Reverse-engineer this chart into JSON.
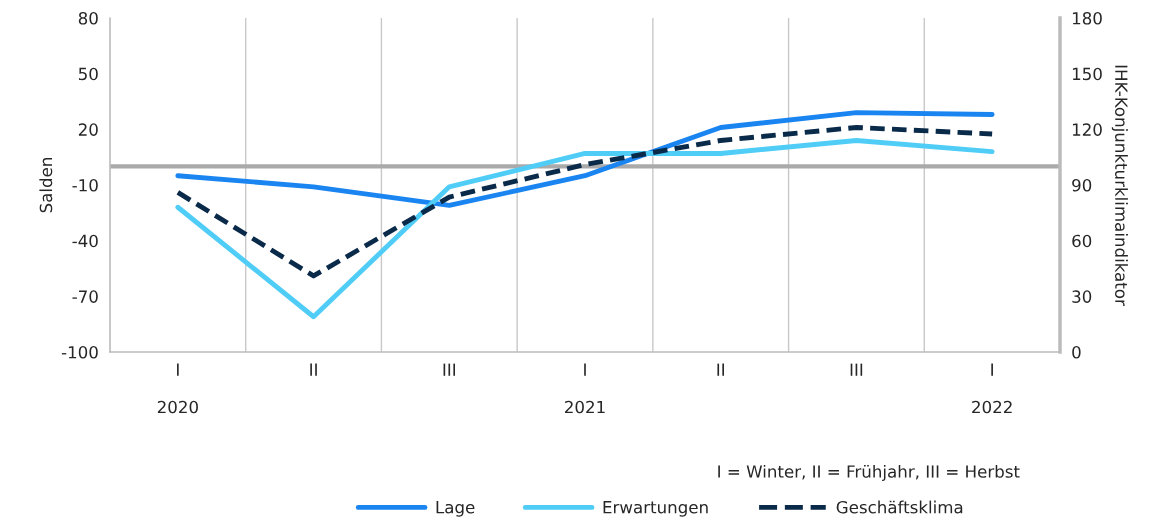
{
  "chart_data": {
    "type": "line",
    "categories": [
      "I\n\n2020",
      "II",
      "III",
      "I\n\n2021",
      "II",
      "III",
      "I\n\n2022"
    ],
    "series": [
      {
        "name": "Lage",
        "color": "#1a85f0",
        "values": [
          -5,
          -11,
          -21,
          -5,
          21,
          29,
          28
        ]
      },
      {
        "name": "Erwartungen",
        "color": "#4fcdf7",
        "values": [
          -22,
          -81,
          -11,
          7,
          7,
          14,
          8
        ]
      },
      {
        "name": "Geschäftsklima",
        "color": "#0a2a4a",
        "values": [
          86,
          41,
          83.5,
          101,
          114,
          121,
          117.5
        ],
        "axis": "y2",
        "line_style": "dashed"
      }
    ],
    "ylabel": "Salden",
    "y2label": "IHK-Konjunkturklimaindikator",
    "ylim": [
      -100,
      80
    ],
    "yticks": [
      -100,
      -70,
      -40,
      -10,
      20,
      50,
      80
    ],
    "y2lim": [
      0,
      180
    ],
    "y2ticks": [
      0,
      30,
      60,
      90,
      120,
      150,
      180
    ],
    "ref_lines": [
      {
        "axis": "y",
        "value": 0,
        "color": "#aaaaaa"
      }
    ],
    "grid": "x",
    "legend": "bottom",
    "annotations": [
      "I = Winter, II = Frühjahr, III = Herbst"
    ]
  }
}
